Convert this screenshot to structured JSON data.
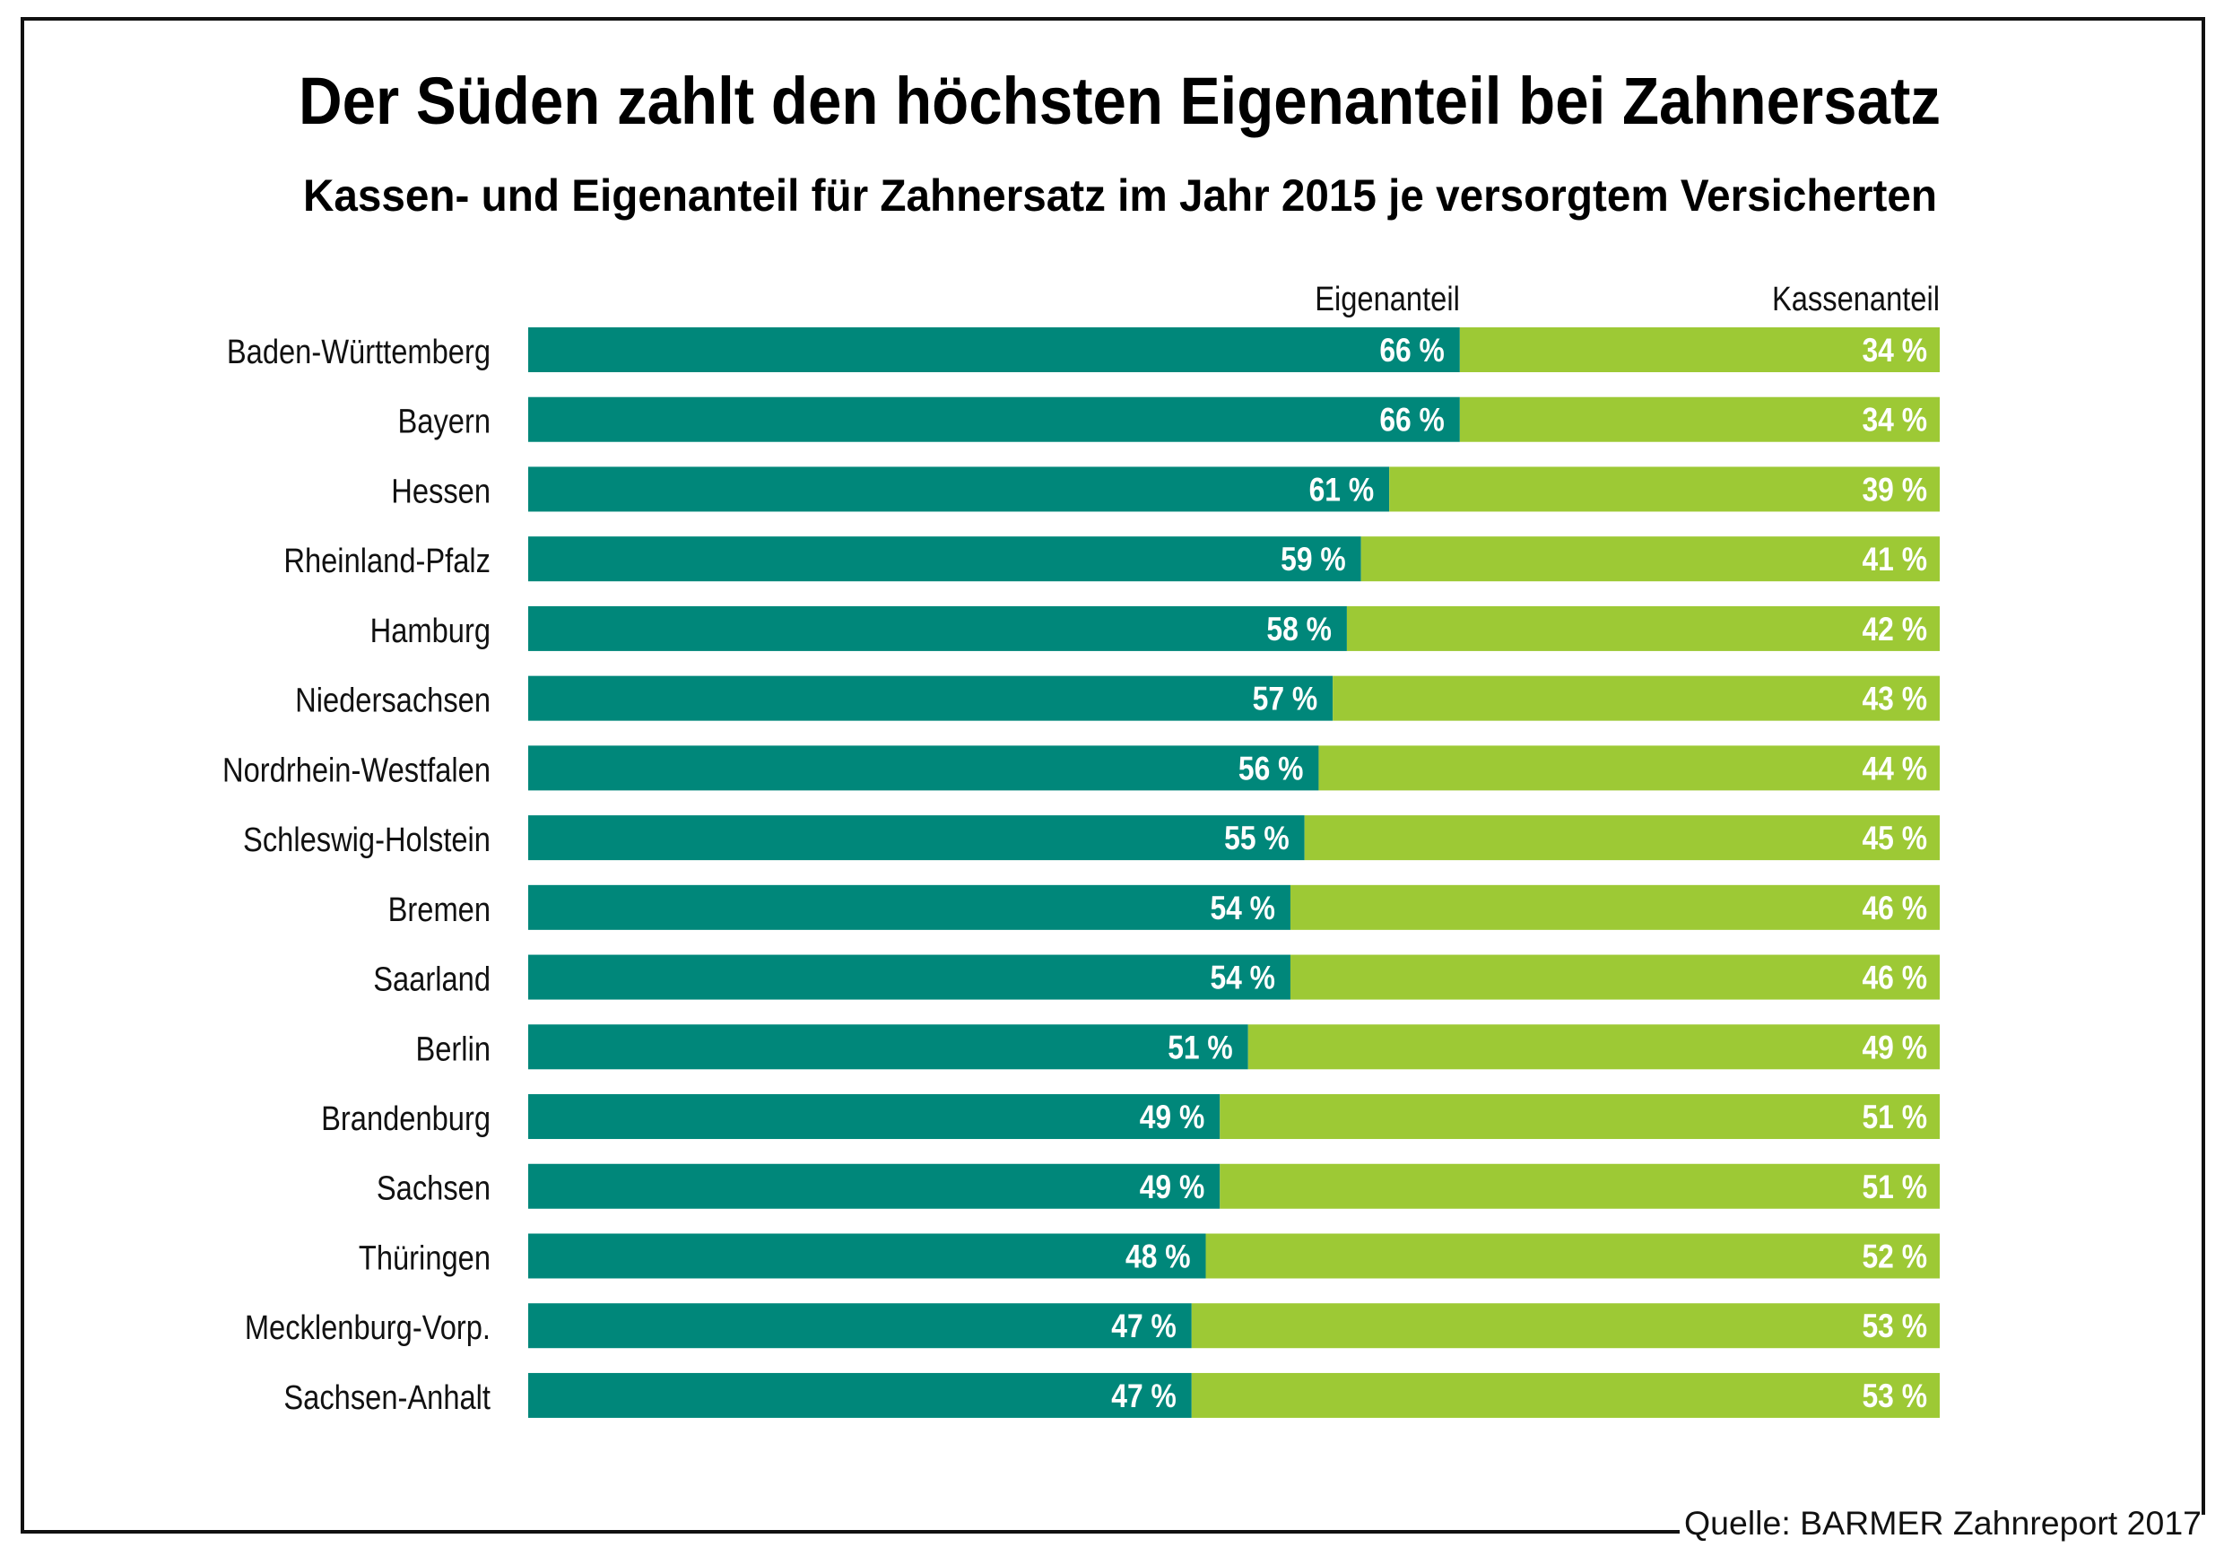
{
  "chart_data": {
    "type": "bar",
    "orientation": "horizontal",
    "stacked": true,
    "normalized_percent": true,
    "title": "Der Süden zahlt den höchsten Eigenanteil bei Zahnersatz",
    "subtitle": "Kassen- und Eigenanteil für Zahnersatz im Jahr 2015 je versorgtem Versicherten",
    "xlabel": "",
    "ylabel": "",
    "xlim": [
      0,
      100
    ],
    "grid": false,
    "legend_placement": "top-inline",
    "value_suffix": " %",
    "categories": [
      "Baden-Württemberg",
      "Bayern",
      "Hessen",
      "Rheinland-Pfalz",
      "Hamburg",
      "Niedersachsen",
      "Nordrhein-Westfalen",
      "Schleswig-Holstein",
      "Bremen",
      "Saarland",
      "Berlin",
      "Brandenburg",
      "Sachsen",
      "Thüringen",
      "Mecklenburg-Vorp.",
      "Sachsen-Anhalt"
    ],
    "series": [
      {
        "name": "Eigenanteil",
        "color": "#00877A",
        "values": [
          66,
          66,
          61,
          59,
          58,
          57,
          56,
          55,
          54,
          54,
          51,
          49,
          49,
          48,
          47,
          47
        ]
      },
      {
        "name": "Kassenanteil",
        "color": "#9DC935",
        "values": [
          34,
          34,
          39,
          41,
          42,
          43,
          44,
          45,
          46,
          46,
          49,
          51,
          51,
          52,
          53,
          53
        ]
      }
    ],
    "source": "Quelle: BARMER Zahnreport 2017"
  }
}
